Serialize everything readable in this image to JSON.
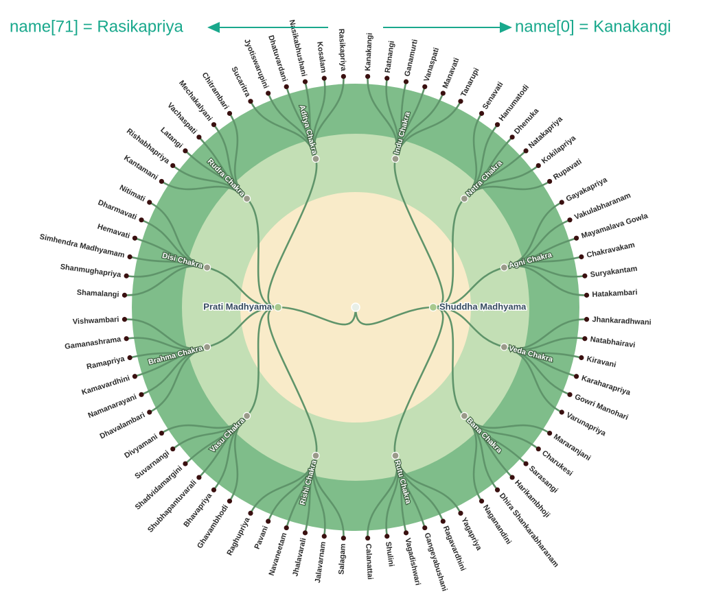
{
  "annotations": {
    "left": "name[71] = Rasikapriya",
    "right": "name[0] = Kanakangi"
  },
  "madhyamas": [
    {
      "label": "Shuddha Madhyama",
      "chakras": [
        {
          "label": "Indu Chakra",
          "ragas": [
            "Kanakangi",
            "Ratnangi",
            "Ganamurti",
            "Vanaspati",
            "Manavati",
            "Tanarupi"
          ]
        },
        {
          "label": "Netra Chakra",
          "ragas": [
            "Senavati",
            "Hanumatodi",
            "Dhenuka",
            "Natakapriya",
            "Kokilapriya",
            "Rupavati"
          ]
        },
        {
          "label": "Agni Chakra",
          "ragas": [
            "Gayakapriya",
            "Vakulabharanam",
            "Mayamalava Gowla",
            "Chakravakam",
            "Suryakantam",
            "Hatakambari"
          ]
        },
        {
          "label": "Veda Chakra",
          "ragas": [
            "Jhankaradhwani",
            "Natabhairavi",
            "Kiravani",
            "Karaharapriya",
            "Gowri Manohari",
            "Varunapriya"
          ]
        },
        {
          "label": "Bana Chakra",
          "ragas": [
            "Mararanjani",
            "Charukesi",
            "Sarasangi",
            "Harikambhoji",
            "Dhira Shankarabharanam",
            "Naganandini"
          ]
        },
        {
          "label": "Rutu Chakra",
          "ragas": [
            "Yagapriya",
            "Ragavardhini",
            "Gangeyabushani",
            "Vagadishwari",
            "Shulini",
            "Calanattai"
          ]
        }
      ]
    },
    {
      "label": "Prati Madhyama",
      "chakras": [
        {
          "label": "Rishi Chakra",
          "ragas": [
            "Salagam",
            "Jalavarnam",
            "Jhalavarali",
            "Navaneetam",
            "Pavani",
            "Raghupriya"
          ]
        },
        {
          "label": "Vasu Chakra",
          "ragas": [
            "Ghavambhodi",
            "Bhavapriya",
            "Shubhapantuvarali",
            "Shadvidamargini",
            "Suvarnangi",
            "Divyamani"
          ]
        },
        {
          "label": "Brahma Chakra",
          "ragas": [
            "Dhavalambari",
            "Namanarayani",
            "Kamavardhini",
            "Ramapriya",
            "Gamanashrama",
            "Vishwambari"
          ]
        },
        {
          "label": "Disi Chakra",
          "ragas": [
            "Shamalangi",
            "Shanmughapriya",
            "Simhendra Madhyamam",
            "Hemavati",
            "Dharmavati",
            "Nitimati"
          ]
        },
        {
          "label": "Rudra Chakra",
          "ragas": [
            "Kantamani",
            "Rishabhapriya",
            "Latangi",
            "Vachaspati",
            "Mechakalyani",
            "Chitrambari"
          ]
        },
        {
          "label": "Aditya Chakra",
          "ragas": [
            "Sucaritra",
            "Jyotiswarupini",
            "Dhatuvardani",
            "Nasikabhushani",
            "Kosalam",
            "Rasikapriya"
          ]
        }
      ]
    }
  ]
}
